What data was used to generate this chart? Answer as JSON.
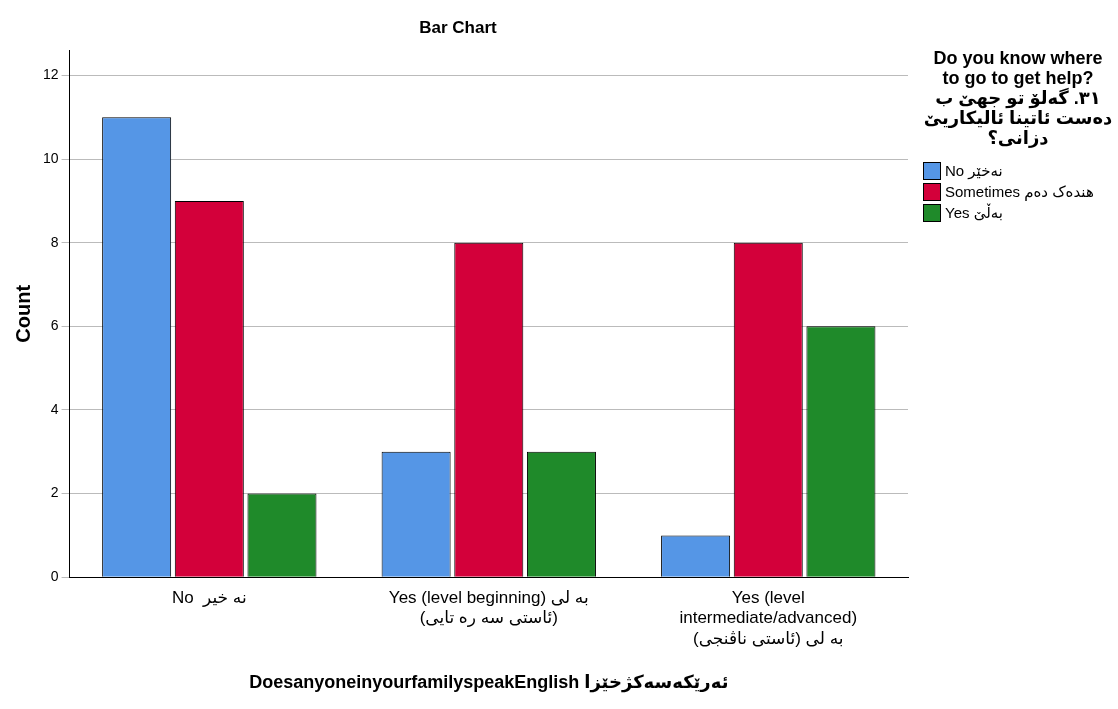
{
  "chart_data": {
    "type": "bar",
    "title": "Bar Chart",
    "xlabel": "DoesanyoneinyourfamilyspeakEnglish ئەرێکەسەکژخێزا",
    "ylabel": "Count",
    "legend_title": "Do you know where to go to get help?\n٣١. گەلۆ تو جهێ ب دەست ئاتینا ئالیکاریێ دزانی؟",
    "categories": [
      "No  نه خیر",
      "Yes (level beginning) به لی\n(ئاستی سه ره تایی)",
      "Yes (level\nintermediate/advanced)\nبه لی (ئاستی ناڤنجی)"
    ],
    "series": [
      {
        "name": "No نەخێر",
        "color": "#5596e6",
        "values": [
          11,
          3,
          1
        ]
      },
      {
        "name": "Sometimes هندەک دەم",
        "color": "#d3003a",
        "values": [
          9,
          8,
          8
        ]
      },
      {
        "name": "Yes بەڵێ",
        "color": "#1f8a2a",
        "values": [
          2,
          3,
          6
        ]
      }
    ],
    "ylim": [
      0,
      12.6
    ],
    "yticks": [
      0,
      2,
      4,
      6,
      8,
      10,
      12
    ],
    "grid": "y",
    "legend": "top right"
  }
}
